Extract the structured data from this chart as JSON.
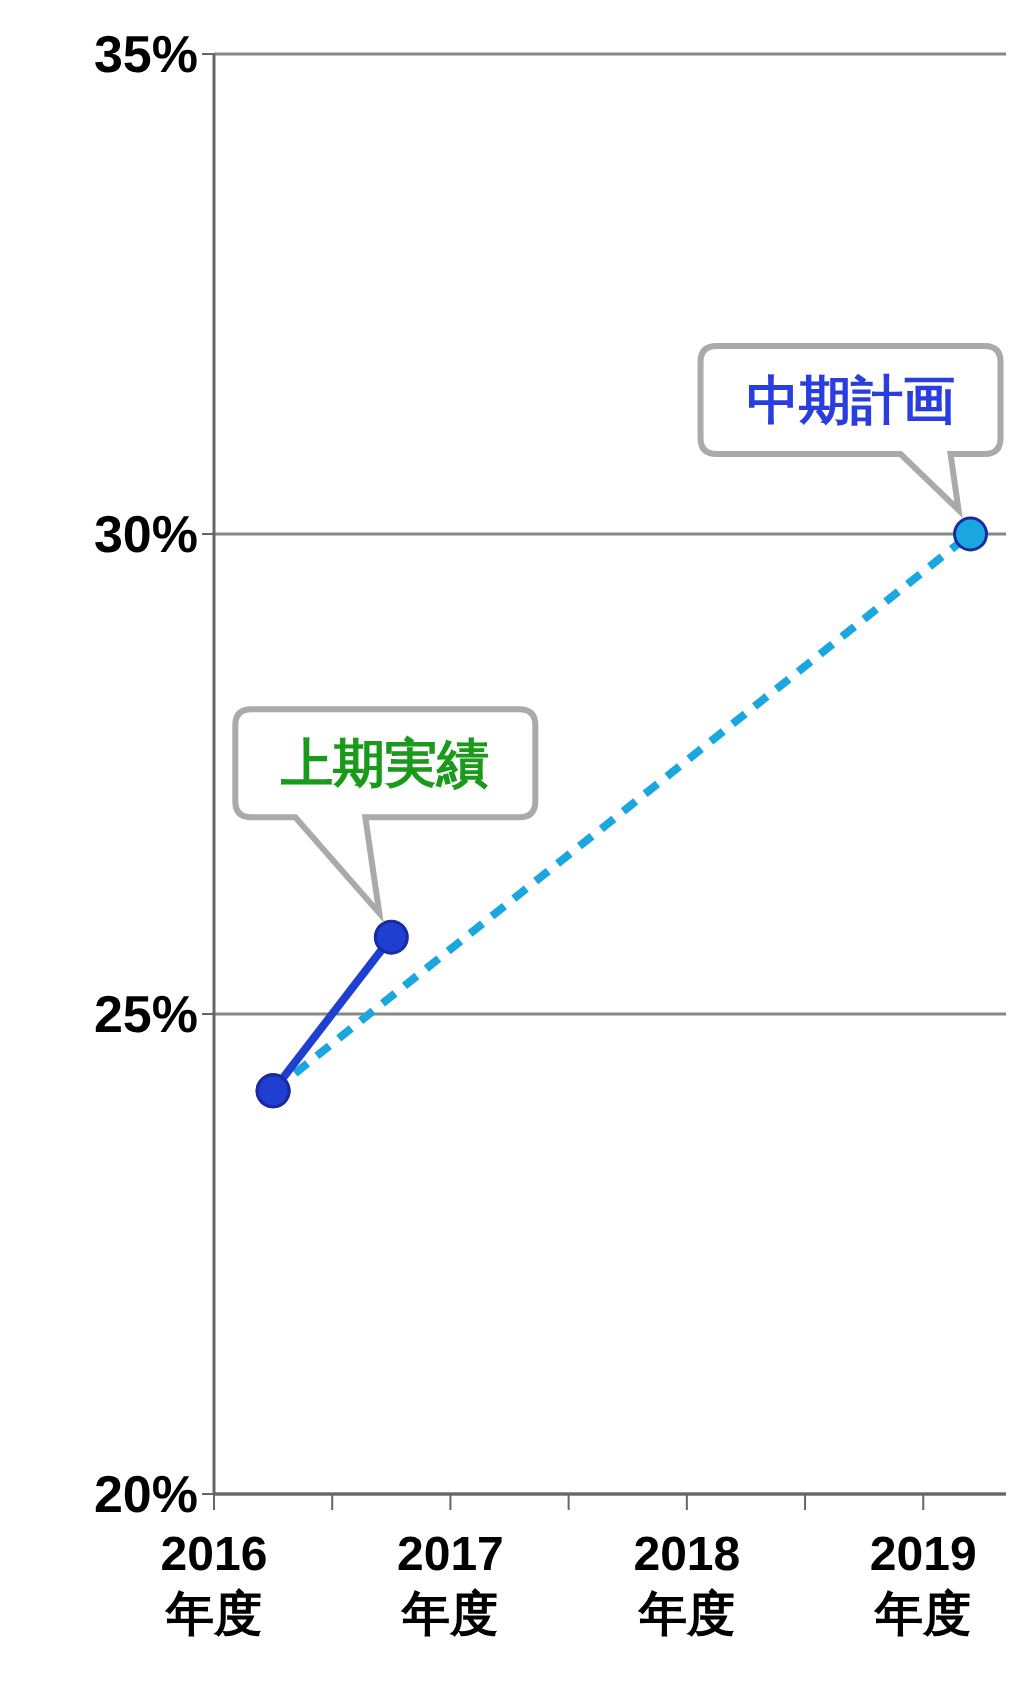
{
  "chart_data": {
    "type": "line",
    "series": [
      {
        "color": "#1aa7e0",
        "line_style": "dashed",
        "x": [
          2016.25,
          2019.2
        ],
        "values": [
          24.2,
          30
        ]
      },
      {
        "color": "#1f3fd0",
        "line_style": "solid",
        "x": [
          2016.25,
          2016.75
        ],
        "values": [
          24.2,
          25.8
        ]
      }
    ],
    "xlim": [
      2016,
      2019.35
    ],
    "xticks": [
      {
        "value": 2016,
        "label": "2016年度"
      },
      {
        "value": 2016.5,
        "label": null
      },
      {
        "value": 2017,
        "label": "2017年度"
      },
      {
        "value": 2017.5,
        "label": null
      },
      {
        "value": 2018,
        "label": "2018年度"
      },
      {
        "value": 2018.5,
        "label": null
      },
      {
        "value": 2019,
        "label": "2019年度"
      }
    ],
    "ylim": [
      20,
      35
    ],
    "yticks": [
      {
        "value": 20,
        "label": "20%"
      },
      {
        "value": 25,
        "label": "25%"
      },
      {
        "value": 30,
        "label": "30%"
      },
      {
        "value": 35,
        "label": "35%"
      }
    ],
    "grid": "y",
    "marker": "circle",
    "legend": false,
    "annotations": [
      {
        "text": "上期実績",
        "x": 2016.75,
        "y": 25.8
      },
      {
        "text": "中期計画",
        "x": 2019.2,
        "y": 30
      }
    ]
  }
}
